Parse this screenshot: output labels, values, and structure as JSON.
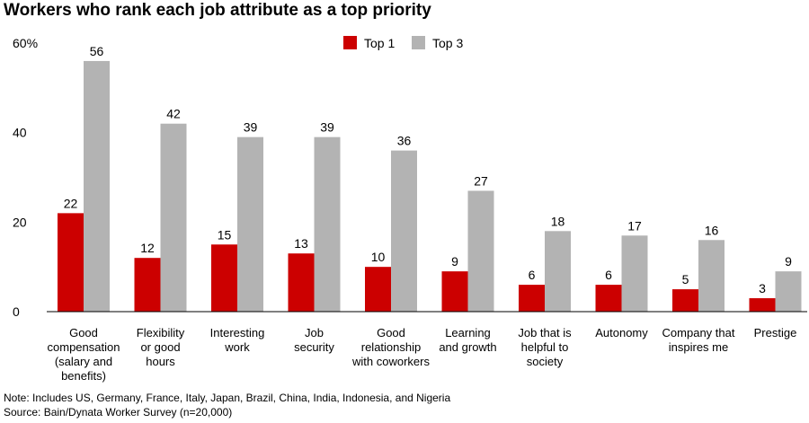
{
  "title": "Workers who rank each job attribute as a top priority",
  "notes": {
    "note": "Note: Includes US, Germany, France, Italy, Japan, Brazil, China, India, Indonesia, and Nigeria",
    "source": "Source: Bain/Dynata Worker Survey (n=20,000)"
  },
  "colors": {
    "top1": "#cc0000",
    "top3": "#b3b3b3"
  },
  "chart_data": {
    "type": "bar",
    "title": "Workers who rank each job attribute as a top priority",
    "categories": [
      [
        "Good",
        "compensation",
        "(salary and",
        "benefits)"
      ],
      [
        "Flexibility",
        "or good",
        "hours"
      ],
      [
        "Interesting",
        "work"
      ],
      [
        "Job",
        "security"
      ],
      [
        "Good",
        "relationship",
        "with coworkers"
      ],
      [
        "Learning",
        "and growth"
      ],
      [
        "Job that is",
        "helpful to",
        "society"
      ],
      [
        "Autonomy"
      ],
      [
        "Company that",
        "inspires me"
      ],
      [
        "Prestige"
      ]
    ],
    "series": [
      {
        "name": "Top 1",
        "values": [
          22,
          12,
          15,
          13,
          10,
          9,
          6,
          6,
          5,
          3
        ],
        "color": "#cc0000"
      },
      {
        "name": "Top 3",
        "values": [
          56,
          42,
          39,
          39,
          36,
          27,
          18,
          17,
          16,
          9
        ],
        "color": "#b3b3b3"
      }
    ],
    "data_labels": {
      "top1": [
        "22",
        "12",
        "15",
        "13",
        "10",
        "9",
        "6",
        "6",
        "5",
        "3"
      ],
      "top3": [
        "56",
        "42",
        "39",
        "39",
        "36",
        "27",
        "18",
        "17",
        "16",
        "9"
      ]
    },
    "yticks": [
      "0",
      "20",
      "40",
      "60%"
    ],
    "ytick_values": [
      0,
      20,
      40,
      60
    ],
    "ylim": [
      0,
      60
    ],
    "grid": false,
    "legend": "top-center"
  }
}
